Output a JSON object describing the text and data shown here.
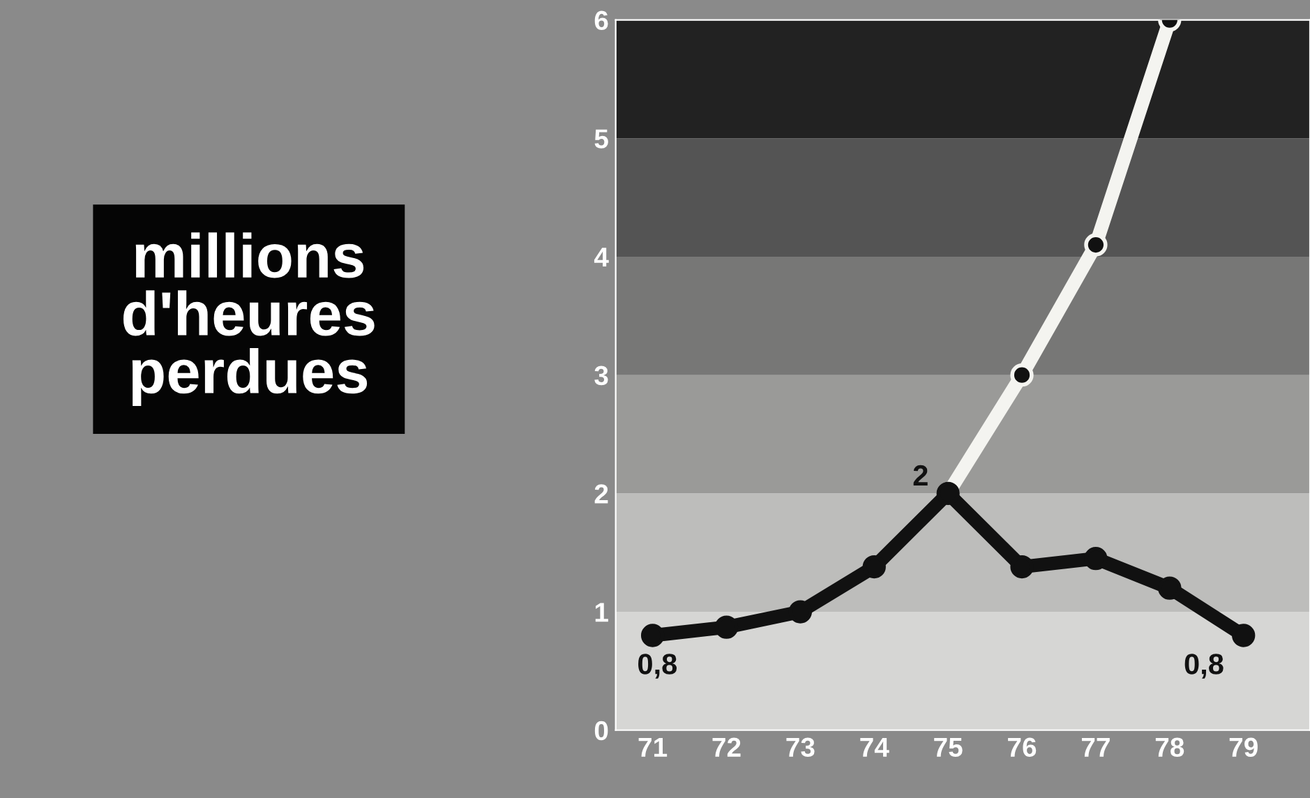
{
  "chart_data": {
    "type": "line",
    "title": "millions\nd'heures\nperdues",
    "x": [
      71,
      72,
      73,
      74,
      75,
      76,
      77,
      78,
      79
    ],
    "series": [
      {
        "color": "#111111",
        "values": [
          0.8,
          0.87,
          1.0,
          1.38,
          2,
          1.38,
          1.45,
          1.2,
          0.8
        ],
        "value_labels": [
          "0,8",
          null,
          null,
          null,
          "2",
          null,
          null,
          null,
          "0,8"
        ]
      },
      {
        "color": "#f4f4f0",
        "x": [
          75,
          76,
          77,
          78
        ],
        "values": [
          2,
          3.0,
          4.1,
          6.0
        ]
      }
    ],
    "xlim": [
      70.5,
      79.9
    ],
    "xticks": [
      71,
      72,
      73,
      74,
      75,
      76,
      77,
      78,
      79
    ],
    "ylim": [
      0,
      6
    ],
    "yticks": [
      0,
      1,
      2,
      3,
      4,
      5,
      6
    ],
    "bands": [
      {
        "axis": "y",
        "from": 0,
        "to": 1,
        "color": "#d6d6d4"
      },
      {
        "axis": "y",
        "from": 1,
        "to": 2,
        "color": "#bdbdbb"
      },
      {
        "axis": "y",
        "from": 2,
        "to": 3,
        "color": "#9a9a98"
      },
      {
        "axis": "y",
        "from": 3,
        "to": 4,
        "color": "#777776"
      },
      {
        "axis": "y",
        "from": 4,
        "to": 5,
        "color": "#545454"
      },
      {
        "axis": "y",
        "from": 5,
        "to": 6,
        "color": "#222222"
      }
    ],
    "marker": "circle",
    "line_style": "solid",
    "grid": false,
    "legend": false
  }
}
